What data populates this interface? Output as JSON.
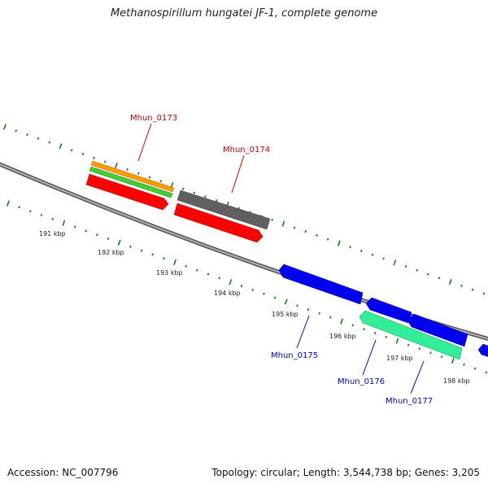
{
  "title": "Methanospirillum hungatei JF-1, complete genome",
  "footer": {
    "accession": "Accession: NC_007796",
    "summary": "Topology: circular; Length: 3,544,738 bp; Genes: 3,205"
  },
  "colors": {
    "backbone": "#8a8a8a",
    "tick": "#1a7a1a",
    "scale_label": "#222222",
    "gene_label_red": "#cc0000",
    "gene_label_blue": "#0000cc"
  },
  "scale_labels": [
    "191 kbp",
    "192 kbp",
    "193 kbp",
    "194 kbp",
    "195 kbp",
    "196 kbp",
    "197 kbp",
    "198 kbp"
  ],
  "gene_labels": [
    {
      "text": "Mhun_0173",
      "color": "#cc0000"
    },
    {
      "text": "Mhun_0174",
      "color": "#cc0000"
    },
    {
      "text": "Mhun_0175",
      "color": "#0000cc"
    },
    {
      "text": "Mhun_0176",
      "color": "#0000cc"
    },
    {
      "text": "Mhun_0177",
      "color": "#0000cc"
    }
  ],
  "features": [
    {
      "name": "gene-orange",
      "color": "#ff9900"
    },
    {
      "name": "gene-green",
      "color": "#44cc33"
    },
    {
      "name": "gene-red-1",
      "color": "#ff0000"
    },
    {
      "name": "gene-gray",
      "color": "#606060"
    },
    {
      "name": "gene-red-2",
      "color": "#ff0000"
    },
    {
      "name": "gene-blue-1",
      "color": "#0000ee"
    },
    {
      "name": "gene-blue-2",
      "color": "#0000ee"
    },
    {
      "name": "gene-blue-3",
      "color": "#0000ee"
    },
    {
      "name": "gene-blue-4",
      "color": "#0000ee"
    },
    {
      "name": "gene-teal",
      "color": "#33ee99"
    }
  ]
}
